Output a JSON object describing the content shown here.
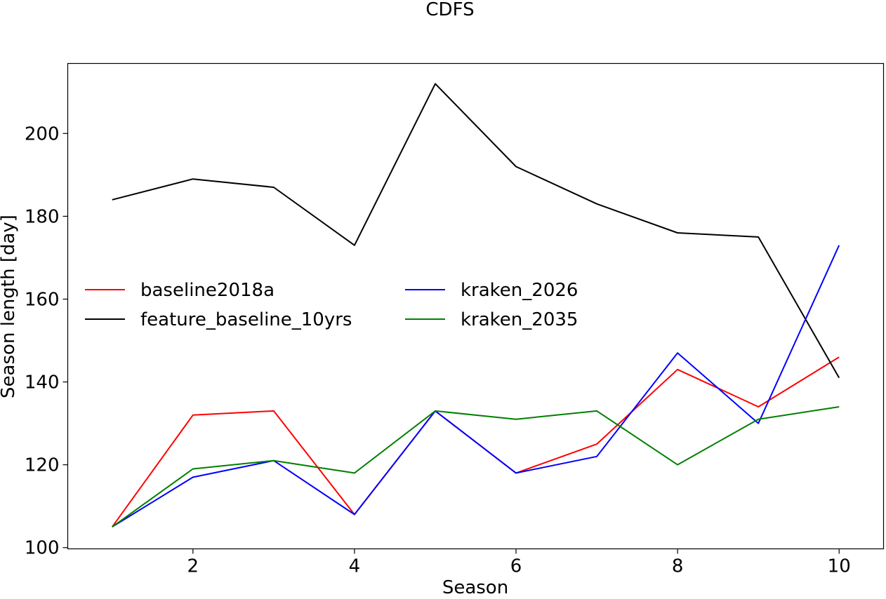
{
  "chart_data": {
    "type": "line",
    "title": "CDFS",
    "xlabel": "Season",
    "ylabel": "Season length [day]",
    "xlim": [
      0.45,
      10.55
    ],
    "ylim": [
      99.7,
      216.9
    ],
    "xticks": [
      2,
      4,
      6,
      8,
      10
    ],
    "yticks": [
      100,
      120,
      140,
      160,
      180,
      200
    ],
    "grid": false,
    "legend_position": "center-left",
    "x": [
      1,
      2,
      3,
      4,
      5,
      6,
      7,
      8,
      9,
      10
    ],
    "series": [
      {
        "name": "baseline2018a",
        "color": "#ff0000",
        "values": [
          105,
          132,
          133,
          108,
          133,
          118,
          125,
          143,
          134,
          146
        ]
      },
      {
        "name": "feature_baseline_10yrs",
        "color": "#000000",
        "values": [
          184,
          189,
          187,
          173,
          212,
          192,
          183,
          176,
          175,
          141
        ]
      },
      {
        "name": "kraken_2026",
        "color": "#0000ff",
        "values": [
          105,
          117,
          121,
          108,
          133,
          118,
          122,
          147,
          130,
          173
        ]
      },
      {
        "name": "kraken_2035",
        "color": "#008000",
        "values": [
          105,
          119,
          121,
          118,
          133,
          131,
          133,
          120,
          131,
          134
        ]
      }
    ]
  }
}
